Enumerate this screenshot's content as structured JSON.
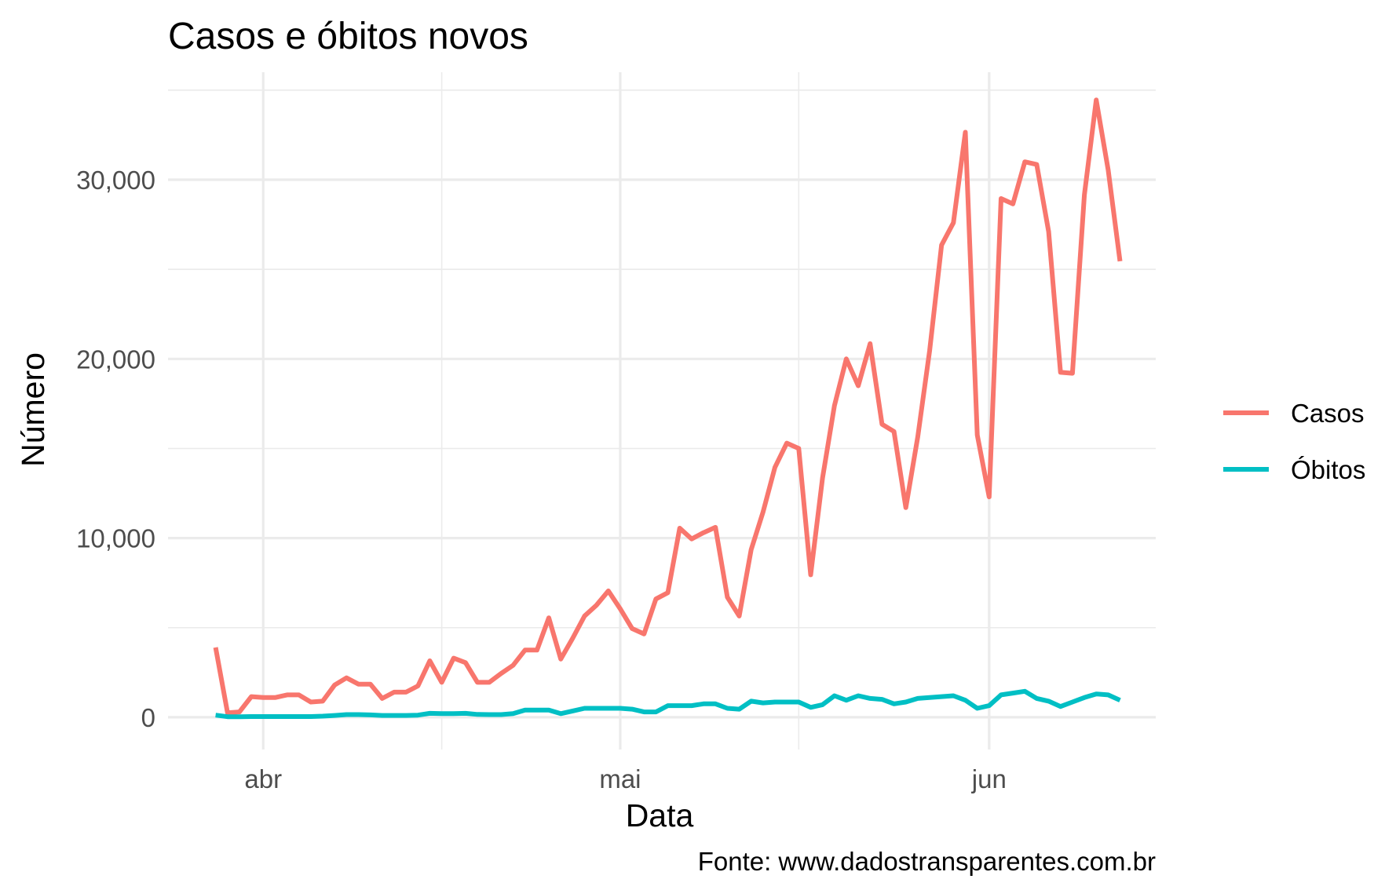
{
  "chart_data": {
    "type": "line",
    "title": "Casos e óbitos novos",
    "xlabel": "Data",
    "ylabel": "Número",
    "caption": "Fonte: www.dadostransparentes.com.br",
    "x_ticks": [
      {
        "label": "abr",
        "date": "2020-04-01"
      },
      {
        "label": "mai",
        "date": "2020-05-01"
      },
      {
        "label": "jun",
        "date": "2020-06-01"
      }
    ],
    "y_ticks": [
      {
        "label": "0",
        "value": 0
      },
      {
        "label": "10,000",
        "value": 10000
      },
      {
        "label": "20,000",
        "value": 20000
      },
      {
        "label": "30,000",
        "value": 30000
      }
    ],
    "ylim": [
      -1800,
      36000
    ],
    "xlim": [
      "2020-03-24",
      "2020-06-15"
    ],
    "grid": true,
    "legend_position": "right",
    "x": [
      "2020-03-28",
      "2020-03-29",
      "2020-03-30",
      "2020-03-31",
      "2020-04-01",
      "2020-04-02",
      "2020-04-03",
      "2020-04-04",
      "2020-04-05",
      "2020-04-06",
      "2020-04-07",
      "2020-04-08",
      "2020-04-09",
      "2020-04-10",
      "2020-04-11",
      "2020-04-12",
      "2020-04-13",
      "2020-04-14",
      "2020-04-15",
      "2020-04-16",
      "2020-04-17",
      "2020-04-18",
      "2020-04-19",
      "2020-04-20",
      "2020-04-21",
      "2020-04-22",
      "2020-04-23",
      "2020-04-24",
      "2020-04-25",
      "2020-04-26",
      "2020-04-27",
      "2020-04-28",
      "2020-04-29",
      "2020-04-30",
      "2020-05-01",
      "2020-05-02",
      "2020-05-03",
      "2020-05-04",
      "2020-05-05",
      "2020-05-06",
      "2020-05-07",
      "2020-05-08",
      "2020-05-09",
      "2020-05-10",
      "2020-05-11",
      "2020-05-12",
      "2020-05-13",
      "2020-05-14",
      "2020-05-15",
      "2020-05-16",
      "2020-05-17",
      "2020-05-18",
      "2020-05-19",
      "2020-05-20",
      "2020-05-21",
      "2020-05-22",
      "2020-05-23",
      "2020-05-24",
      "2020-05-25",
      "2020-05-26",
      "2020-05-27",
      "2020-05-28",
      "2020-05-29",
      "2020-05-30",
      "2020-05-31",
      "2020-06-01",
      "2020-06-02",
      "2020-06-03",
      "2020-06-04",
      "2020-06-05",
      "2020-06-06",
      "2020-06-07",
      "2020-06-08",
      "2020-06-09",
      "2020-06-10",
      "2020-06-11",
      "2020-06-12"
    ],
    "series": [
      {
        "name": "Casos",
        "color": "#F8766D",
        "values": [
          3900,
          250,
          300,
          1150,
          1100,
          1100,
          1250,
          1250,
          850,
          900,
          1800,
          2200,
          1850,
          1850,
          1050,
          1400,
          1400,
          1750,
          3150,
          1950,
          3300,
          3050,
          1950,
          1950,
          2450,
          2900,
          3750,
          3750,
          5550,
          3250,
          4400,
          5650,
          6250,
          7050,
          6050,
          4950,
          4650,
          6600,
          6950,
          10550,
          9950,
          10300,
          10600,
          6700,
          5650,
          9350,
          11450,
          13950,
          15300,
          15000,
          7950,
          13350,
          17400,
          20000,
          18500,
          20850,
          16350,
          15950,
          11700,
          15650,
          20450,
          26350,
          27600,
          32650,
          15750,
          12300,
          28950,
          28650,
          31000,
          30850,
          27100,
          19250,
          19200,
          29150,
          34450,
          30550,
          25450
        ]
      },
      {
        "name": "Óbitos",
        "color": "#00BFC4",
        "values": [
          120,
          30,
          30,
          40,
          40,
          40,
          40,
          40,
          40,
          60,
          100,
          150,
          150,
          130,
          100,
          100,
          100,
          120,
          220,
          200,
          200,
          220,
          160,
          150,
          150,
          200,
          400,
          400,
          400,
          200,
          350,
          500,
          500,
          500,
          500,
          450,
          300,
          300,
          650,
          650,
          650,
          750,
          750,
          500,
          450,
          900,
          800,
          850,
          850,
          850,
          550,
          700,
          1200,
          950,
          1200,
          1050,
          1000,
          750,
          850,
          1050,
          1100,
          1150,
          1200,
          950,
          500,
          650,
          1250,
          1350,
          1450,
          1050,
          900,
          600,
          850,
          1100,
          1300,
          1250,
          950
        ]
      }
    ]
  }
}
